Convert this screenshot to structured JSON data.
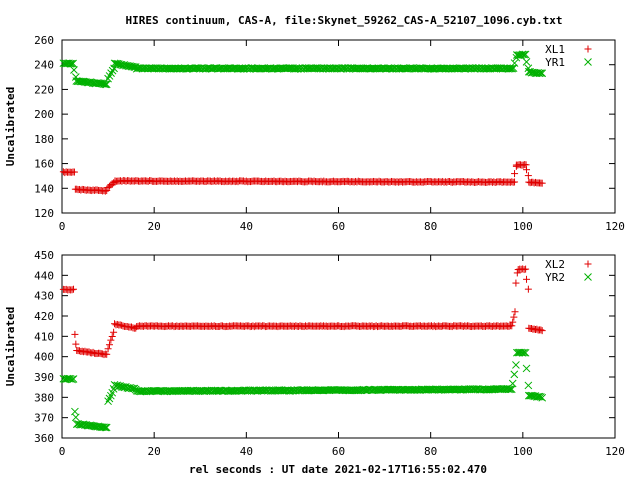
{
  "title": "HIRES continuum, CAS-A, file:Skynet_59262_CAS-A_52107_1096.cyb.txt",
  "xlabel": "rel seconds : UT date 2021-02-17T16:55:02.470",
  "colors": {
    "series1": "#e00000",
    "series2": "#00b000"
  },
  "chart_data": [
    {
      "type": "scatter",
      "ylabel": "Uncalibrated",
      "xlim": [
        0,
        120
      ],
      "ylim": [
        120,
        260
      ],
      "xticks": [
        0,
        20,
        40,
        60,
        80,
        100,
        120
      ],
      "yticks": [
        120,
        140,
        160,
        180,
        200,
        220,
        240,
        260
      ],
      "legend_position": "top-right",
      "series": [
        {
          "name": "XL1",
          "marker": "plus",
          "segments": [
            {
              "x": [
                0.3,
                2.7
              ],
              "y": [
                153,
                153
              ]
            },
            {
              "x": [
                2.9,
                9.7
              ],
              "y": [
                139,
                138
              ]
            },
            {
              "x": [
                10.0,
                11.5
              ],
              "y": [
                141,
                145
              ]
            },
            {
              "x": [
                11.5,
                98.2
              ],
              "y": [
                146,
                145
              ]
            },
            {
              "x": [
                98.2,
                98.6
              ],
              "y": [
                152,
                158
              ]
            },
            {
              "x": [
                98.6,
                100.7
              ],
              "y": [
                159,
                159
              ]
            },
            {
              "x": [
                100.8,
                101.2
              ],
              "y": [
                155,
                150
              ]
            },
            {
              "x": [
                101.3,
                104.2
              ],
              "y": [
                145,
                144
              ]
            }
          ]
        },
        {
          "name": "YR1",
          "marker": "cross",
          "segments": [
            {
              "x": [
                0.3,
                2.4
              ],
              "y": [
                241,
                241
              ]
            },
            {
              "x": [
                2.6,
                3.0
              ],
              "y": [
                236,
                230
              ]
            },
            {
              "x": [
                3.1,
                9.7
              ],
              "y": [
                227,
                224
              ]
            },
            {
              "x": [
                10.0,
                11.3
              ],
              "y": [
                229,
                237
              ]
            },
            {
              "x": [
                11.4,
                16.0
              ],
              "y": [
                241,
                238
              ]
            },
            {
              "x": [
                16.2,
                98.0
              ],
              "y": [
                237,
                237
              ]
            },
            {
              "x": [
                98.2,
                98.6
              ],
              "y": [
                241,
                246
              ]
            },
            {
              "x": [
                98.7,
                100.6
              ],
              "y": [
                248,
                248
              ]
            },
            {
              "x": [
                100.8,
                101.2
              ],
              "y": [
                242,
                237
              ]
            },
            {
              "x": [
                101.3,
                104.2
              ],
              "y": [
                234,
                233
              ]
            }
          ]
        }
      ]
    },
    {
      "type": "scatter",
      "ylabel": "Uncalibrated",
      "xlim": [
        0,
        120
      ],
      "ylim": [
        360,
        450
      ],
      "xticks": [
        0,
        20,
        40,
        60,
        80,
        100,
        120
      ],
      "yticks": [
        360,
        370,
        380,
        390,
        400,
        410,
        420,
        430,
        440,
        450
      ],
      "legend_position": "top-right",
      "series": [
        {
          "name": "XL2",
          "marker": "plus",
          "segments": [
            {
              "x": [
                0.3,
                2.5
              ],
              "y": [
                433,
                433
              ]
            },
            {
              "x": [
                2.8,
                3.0
              ],
              "y": [
                411,
                406
              ]
            },
            {
              "x": [
                3.2,
                9.7
              ],
              "y": [
                403,
                401
              ]
            },
            {
              "x": [
                10.0,
                11.2
              ],
              "y": [
                404,
                412
              ]
            },
            {
              "x": [
                11.4,
                16.0
              ],
              "y": [
                416,
                414
              ]
            },
            {
              "x": [
                16.2,
                97.6
              ],
              "y": [
                415,
                415
              ]
            },
            {
              "x": [
                97.8,
                98.3
              ],
              "y": [
                417,
                422
              ]
            },
            {
              "x": [
                98.5,
                98.8
              ],
              "y": [
                436,
                441
              ]
            },
            {
              "x": [
                99.0,
                100.6
              ],
              "y": [
                443,
                443
              ]
            },
            {
              "x": [
                100.8,
                101.2
              ],
              "y": [
                438,
                433
              ]
            },
            {
              "x": [
                101.3,
                104.2
              ],
              "y": [
                414,
                413
              ]
            }
          ]
        },
        {
          "name": "YR2",
          "marker": "cross",
          "segments": [
            {
              "x": [
                0.3,
                2.5
              ],
              "y": [
                389,
                389
              ]
            },
            {
              "x": [
                2.8,
                3.0
              ],
              "y": [
                373,
                370
              ]
            },
            {
              "x": [
                3.2,
                9.7
              ],
              "y": [
                367,
                365
              ]
            },
            {
              "x": [
                10.0,
                11.2
              ],
              "y": [
                378,
                384
              ]
            },
            {
              "x": [
                11.4,
                16.0
              ],
              "y": [
                386,
                384
              ]
            },
            {
              "x": [
                16.2,
                97.6
              ],
              "y": [
                383,
                384
              ]
            },
            {
              "x": [
                97.8,
                98.5
              ],
              "y": [
                387,
                396
              ]
            },
            {
              "x": [
                98.7,
                100.6
              ],
              "y": [
                402,
                402
              ]
            },
            {
              "x": [
                100.8,
                101.2
              ],
              "y": [
                394,
                386
              ]
            },
            {
              "x": [
                101.3,
                104.2
              ],
              "y": [
                381,
                380
              ]
            }
          ]
        }
      ]
    }
  ]
}
